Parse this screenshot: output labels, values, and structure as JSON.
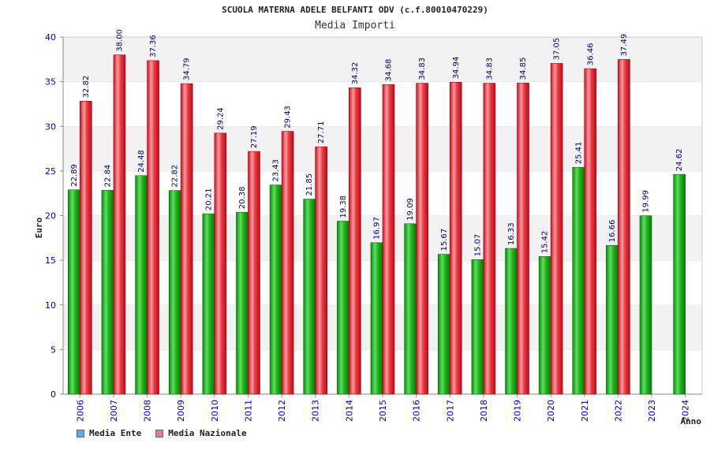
{
  "header": {
    "title": "SCUOLA MATERNA ADELE BELFANTI ODV (c.f.80010470229)",
    "subtitle": "Media Importi"
  },
  "legend": {
    "items": [
      {
        "label": "Media Ente",
        "color": "#6aa6e8"
      },
      {
        "label": "Media Nazionale",
        "color": "#e07aa8"
      }
    ]
  },
  "chart_data": {
    "type": "bar",
    "title": "Media Importi",
    "xlabel": "Anno",
    "ylabel": "Euro",
    "ylim": [
      0,
      40
    ],
    "yticks": [
      0,
      5,
      10,
      15,
      20,
      25,
      30,
      35,
      40
    ],
    "grid": "horizontal bands",
    "legend_position": "bottom-left",
    "categories": [
      "2006",
      "2007",
      "2008",
      "2009",
      "2010",
      "2011",
      "2012",
      "2013",
      "2014",
      "2015",
      "2016",
      "2017",
      "2018",
      "2019",
      "2020",
      "2021",
      "2022",
      "2023",
      "2024"
    ],
    "series": [
      {
        "name": "Media Ente",
        "color": "#22aa22",
        "values": [
          22.89,
          22.84,
          24.48,
          22.82,
          20.21,
          20.38,
          23.43,
          21.85,
          19.38,
          16.97,
          19.09,
          15.67,
          15.07,
          16.33,
          15.42,
          25.41,
          16.66,
          19.99,
          24.62
        ],
        "labels": [
          "22.89",
          "22.84",
          "24.48",
          "22.82",
          "20.21",
          "20.38",
          "23.43",
          "21.85",
          "19.38",
          "16.97",
          "19.09",
          "15.67",
          "15.07",
          "16.33",
          "15.42",
          "25.41",
          "16.66",
          "19.99",
          "24.62"
        ]
      },
      {
        "name": "Media Nazionale",
        "color": "#e82030",
        "values": [
          32.82,
          38.0,
          37.36,
          34.79,
          29.24,
          27.19,
          29.43,
          27.71,
          34.32,
          34.68,
          34.83,
          34.94,
          34.83,
          34.85,
          37.05,
          36.46,
          37.49,
          null,
          null
        ],
        "labels": [
          "32.82",
          "38.00",
          "37.36",
          "34.79",
          "29.24",
          "27.19",
          "29.43",
          "27.71",
          "34.32",
          "34.68",
          "34.83",
          "34.94",
          "34.83",
          "34.85",
          "37.05",
          "36.46",
          "37.49",
          "",
          ""
        ]
      }
    ]
  }
}
